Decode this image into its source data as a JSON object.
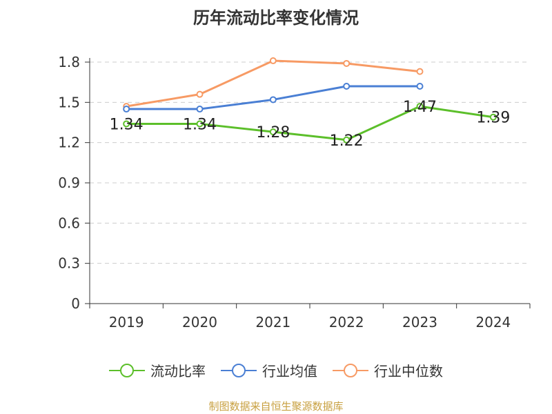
{
  "chart_data": {
    "type": "line",
    "title": "历年流动比率变化情况",
    "categories": [
      "2019",
      "2020",
      "2021",
      "2022",
      "2023",
      "2024"
    ],
    "ylim": [
      0,
      1.8
    ],
    "yticks": [
      "0",
      "0.3",
      "0.6",
      "0.9",
      "1.2",
      "1.5",
      "1.8"
    ],
    "grid": true,
    "legend_position": "bottom",
    "series": [
      {
        "name": "流动比率",
        "color": "#5cbf2a",
        "values": [
          1.34,
          1.34,
          1.28,
          1.22,
          1.47,
          1.39
        ],
        "labels": [
          "1.34",
          "1.34",
          "1.28",
          "1.22",
          "1.47",
          "1.39"
        ]
      },
      {
        "name": "行业均值",
        "color": "#4a7fd4",
        "values": [
          1.45,
          1.45,
          1.52,
          1.62,
          1.62,
          null
        ]
      },
      {
        "name": "行业中位数",
        "color": "#f79a64",
        "values": [
          1.47,
          1.56,
          1.81,
          1.79,
          1.73,
          null
        ]
      }
    ]
  },
  "source": "制图数据来自恒生聚源数据库"
}
